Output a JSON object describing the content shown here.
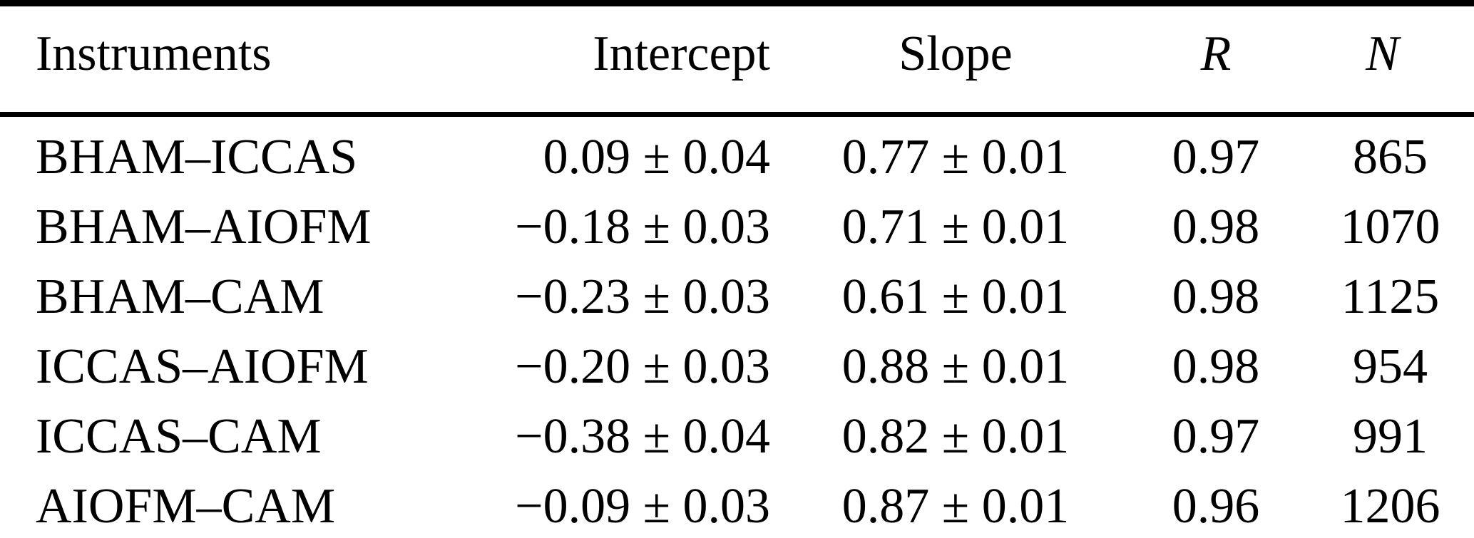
{
  "colors": {
    "background": "#ffffff",
    "text": "#000000",
    "rule": "#000000"
  },
  "table": {
    "columns": {
      "instruments": "Instruments",
      "intercept": "Intercept",
      "slope": "Slope",
      "r": "R",
      "n": "N"
    },
    "rows": [
      {
        "instruments": "BHAM–ICCAS",
        "intercept": "0.09 ± 0.04",
        "slope": "0.77 ± 0.01",
        "r": "0.97",
        "n": "865"
      },
      {
        "instruments": "BHAM–AIOFM",
        "intercept": "−0.18 ± 0.03",
        "slope": "0.71 ± 0.01",
        "r": "0.98",
        "n": "1070"
      },
      {
        "instruments": "BHAM–CAM",
        "intercept": "−0.23 ± 0.03",
        "slope": "0.61 ± 0.01",
        "r": "0.98",
        "n": "1125"
      },
      {
        "instruments": "ICCAS–AIOFM",
        "intercept": "−0.20 ± 0.03",
        "slope": "0.88 ± 0.01",
        "r": "0.98",
        "n": "954"
      },
      {
        "instruments": "ICCAS–CAM",
        "intercept": "−0.38 ± 0.04",
        "slope": "0.82 ± 0.01",
        "r": "0.97",
        "n": "991"
      },
      {
        "instruments": "AIOFM–CAM",
        "intercept": "−0.09 ± 0.03",
        "slope": "0.87 ± 0.01",
        "r": "0.96",
        "n": "1206"
      }
    ]
  },
  "chart_data": {
    "type": "table",
    "columns": [
      "Instruments",
      "Intercept",
      "Slope",
      "R",
      "N"
    ],
    "rows": [
      [
        "BHAM–ICCAS",
        "0.09 ± 0.04",
        "0.77 ± 0.01",
        0.97,
        865
      ],
      [
        "BHAM–AIOFM",
        "−0.18 ± 0.03",
        "0.71 ± 0.01",
        0.98,
        1070
      ],
      [
        "BHAM–CAM",
        "−0.23 ± 0.03",
        "0.61 ± 0.01",
        0.98,
        1125
      ],
      [
        "ICCAS–AIOFM",
        "−0.20 ± 0.03",
        "0.88 ± 0.01",
        0.98,
        954
      ],
      [
        "ICCAS–CAM",
        "−0.38 ± 0.04",
        "0.82 ± 0.01",
        0.97,
        991
      ],
      [
        "AIOFM–CAM",
        "−0.09 ± 0.03",
        "0.87 ± 0.01",
        0.96,
        1206
      ]
    ]
  }
}
